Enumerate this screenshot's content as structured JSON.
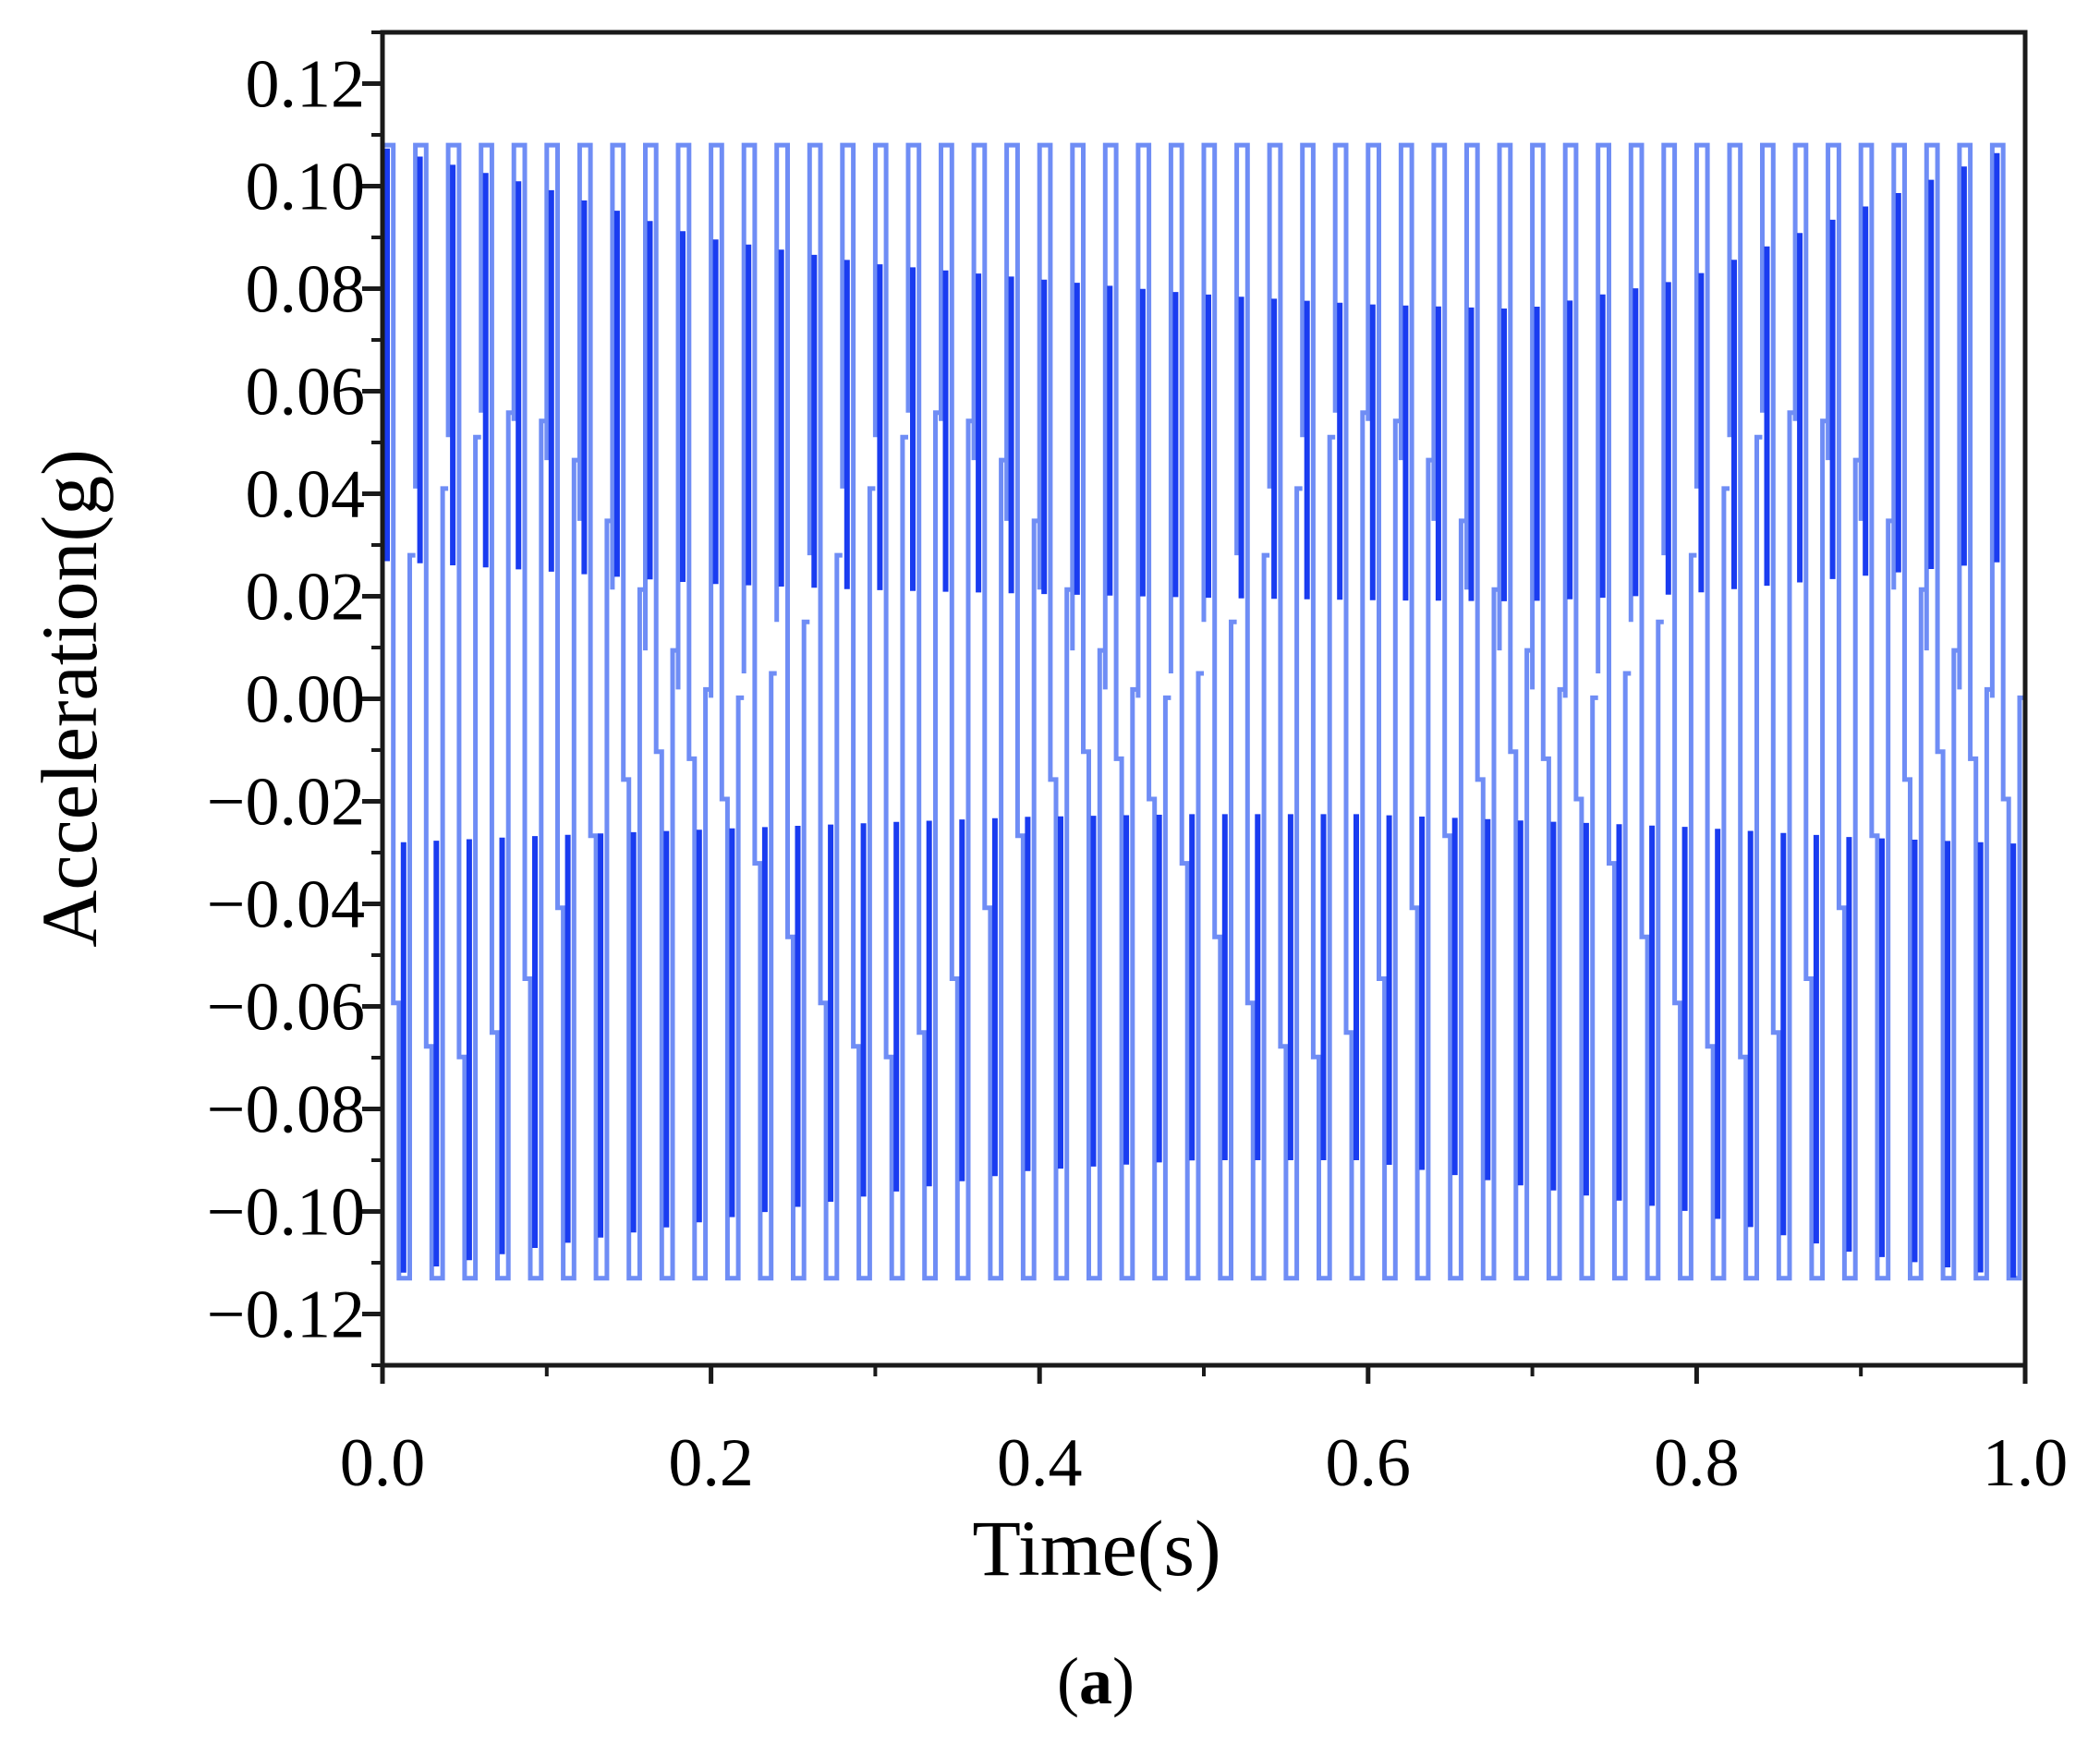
{
  "chart_data": {
    "type": "line",
    "title": "",
    "xlabel": "Time(s)",
    "ylabel": "Acceleration(g)",
    "panel_label": {
      "open": "(",
      "letter": "a",
      "close": ")"
    },
    "xlim": [
      0.0,
      1.0
    ],
    "ylim": [
      -0.13,
      0.13
    ],
    "x_ticks": [
      0.0,
      0.2,
      0.4,
      0.6,
      0.8,
      1.0
    ],
    "x_tick_labels": [
      "0.0",
      "0.2",
      "0.4",
      "0.6",
      "0.8",
      "1.0"
    ],
    "y_ticks": [
      0.12,
      0.1,
      0.08,
      0.06,
      0.04,
      0.02,
      0.0,
      -0.02,
      -0.04,
      -0.06,
      -0.08,
      -0.1,
      -0.12
    ],
    "y_tick_labels": [
      "0.12",
      "0.10",
      "0.08",
      "0.06",
      "0.04",
      "0.02",
      "0.00",
      "−0.02",
      "−0.04",
      "−0.06",
      "−0.08",
      "−0.10",
      "−0.12"
    ],
    "grid": false,
    "legend": "none",
    "series": [
      {
        "color": "#1a3cf0",
        "light_color": "#6f8df5",
        "sampling": "zero-order hold (staircase)",
        "cycles": 50,
        "peak": 0.108,
        "trough": -0.113,
        "x": [
          0.0,
          0.1,
          0.2,
          0.3,
          0.4,
          0.5,
          0.6,
          0.7,
          0.8,
          0.9,
          1.0
        ],
        "upper_envelope_dark": [
          0.108,
          0.1,
          0.09,
          0.085,
          0.082,
          0.079,
          0.077,
          0.076,
          0.082,
          0.095,
          0.108
        ],
        "lower_envelope_dark": [
          -0.113,
          -0.107,
          -0.102,
          -0.097,
          -0.092,
          -0.09,
          -0.09,
          -0.095,
          -0.1,
          -0.108,
          -0.113
        ]
      }
    ]
  }
}
